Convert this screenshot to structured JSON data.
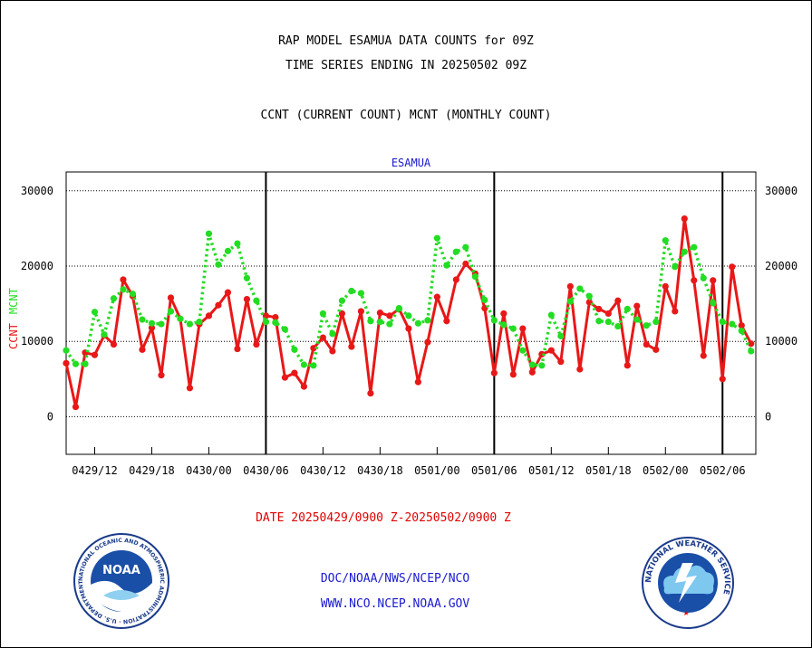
{
  "header": {
    "title_line1": "RAP MODEL ESAMUA DATA COUNTS for 09Z",
    "title_line2": "TIME SERIES ENDING IN 20250502 09Z",
    "subtitle": "CCNT (CURRENT COUNT) MCNT (MONTHLY COUNT)"
  },
  "footer": {
    "date_range": "DATE 20250429/0900 Z-20250502/0900 Z",
    "link1": "DOC/NOAA/NWS/NCEP/NCO",
    "link2": "WWW.NCO.NCEP.NOAA.GOV"
  },
  "logos": {
    "left_text": "NOAA",
    "left_ring": "NATIONAL OCEANIC AND ATMOSPHERIC ADMINISTRATION · U.S. DEPARTMENT OF COMMERCE",
    "right_ring": "NATIONAL WEATHER SERVICE"
  },
  "colors": {
    "ccnt": "#e81818",
    "mcnt": "#22dd22",
    "title_blue": "#1a1ad0",
    "axis": "#000000"
  },
  "chart_data": {
    "type": "line",
    "title": "ESAMUA",
    "ylabel_ccnt": "CCNT",
    "ylabel_mcnt": "MCNT",
    "ylim": [
      -5000,
      32500
    ],
    "yticks": [
      0,
      10000,
      20000,
      30000
    ],
    "ytick_labels": [
      "0",
      "10000",
      "20000",
      "30000"
    ],
    "xlim": [
      0,
      72.5
    ],
    "x_unit": "hours since 20250429/0900",
    "xtick_values": [
      3,
      9,
      15,
      21,
      27,
      33,
      39,
      45,
      51,
      57,
      63,
      69
    ],
    "xtick_labels": [
      "0429/12",
      "0429/18",
      "0430/00",
      "0430/06",
      "0430/12",
      "0430/18",
      "0501/00",
      "0501/06",
      "0501/12",
      "0501/18",
      "0502/00",
      "0502/06"
    ],
    "day_boundaries": [
      21,
      45,
      69
    ],
    "grid": "horizontal dotted",
    "series": [
      {
        "name": "CCNT",
        "style": "solid",
        "values": [
          7100,
          1300,
          8500,
          8200,
          10800,
          9600,
          18200,
          16000,
          8900,
          11800,
          5500,
          15800,
          13000,
          3800,
          12300,
          13400,
          14800,
          16500,
          9000,
          15600,
          9600,
          13400,
          13200,
          5200,
          5800,
          4000,
          9100,
          10500,
          8700,
          13700,
          9300,
          14000,
          3100,
          13800,
          13400,
          14300,
          11700,
          4600,
          9900,
          15900,
          12700,
          18200,
          20300,
          19000,
          14400,
          5800,
          13700,
          5600,
          11700,
          5900,
          8300,
          8800,
          7300,
          17300,
          6300,
          15200,
          14300,
          13700,
          15400,
          6800,
          14700,
          9600,
          8900,
          17300,
          14000,
          26300,
          18100,
          8100,
          18100,
          5000,
          19900,
          12100,
          9700
        ]
      },
      {
        "name": "MCNT",
        "style": "dotted",
        "values": [
          8800,
          7000,
          7000,
          13900,
          10900,
          15700,
          16900,
          16300,
          12900,
          12400,
          12300,
          14000,
          13000,
          12300,
          12600,
          24300,
          20200,
          22000,
          23000,
          18400,
          15400,
          12600,
          12500,
          11600,
          8900,
          6900,
          6800,
          13700,
          11000,
          15400,
          16700,
          16400,
          12700,
          12600,
          12300,
          14400,
          13400,
          12400,
          12800,
          23700,
          20100,
          21900,
          22500,
          18600,
          15500,
          12800,
          12200,
          11700,
          8800,
          6900,
          6800,
          13500,
          10700,
          15300,
          17000,
          16000,
          12700,
          12600,
          12000,
          14300,
          12900,
          12100,
          12600,
          23400,
          19900,
          21900,
          22500,
          18400,
          15100,
          12600,
          12300,
          11400,
          8700
        ]
      }
    ]
  }
}
